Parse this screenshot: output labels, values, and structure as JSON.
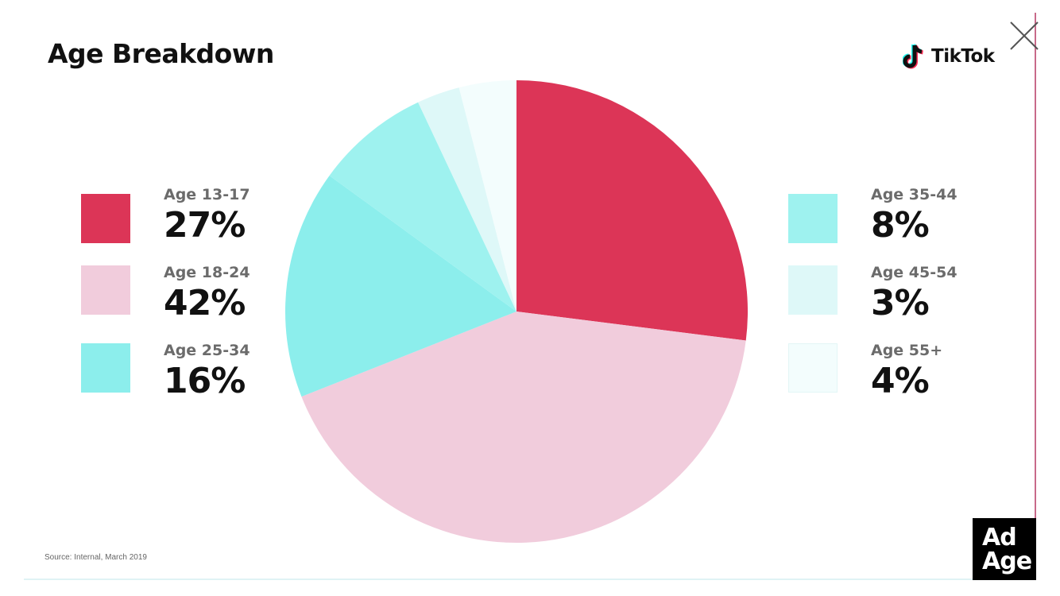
{
  "slide": {
    "title": "Age Breakdown",
    "brand": "TikTok",
    "source": "Source: Internal, March 2019",
    "publisher_logo": {
      "line1": "Ad",
      "line2": "Age"
    }
  },
  "icons": {
    "close": "close-icon",
    "brand": "tiktok-note-icon"
  },
  "colors": {
    "age_13_17": "#dc3557",
    "age_18_24": "#f1ccdc",
    "age_25_34": "#8ceeec",
    "age_35_44": "#9ef2ef",
    "age_45_54": "#def8f8",
    "age_55_plus": "#f3fdfd"
  },
  "chart_data": {
    "type": "pie",
    "title": "Age Breakdown",
    "slices": [
      {
        "label": "Age 13-17",
        "value": 27,
        "display": "27%",
        "color": "#dc3557"
      },
      {
        "label": "Age 18-24",
        "value": 42,
        "display": "42%",
        "color": "#f1ccdc"
      },
      {
        "label": "Age 25-34",
        "value": 16,
        "display": "16%",
        "color": "#8ceeec"
      },
      {
        "label": "Age 35-44",
        "value": 8,
        "display": "8%",
        "color": "#9ef2ef"
      },
      {
        "label": "Age 45-54",
        "value": 3,
        "display": "3%",
        "color": "#def8f8"
      },
      {
        "label": "Age 55+",
        "value": 4,
        "display": "4%",
        "color": "#f3fdfd"
      }
    ],
    "legend_placement": "split left and right of pie"
  }
}
